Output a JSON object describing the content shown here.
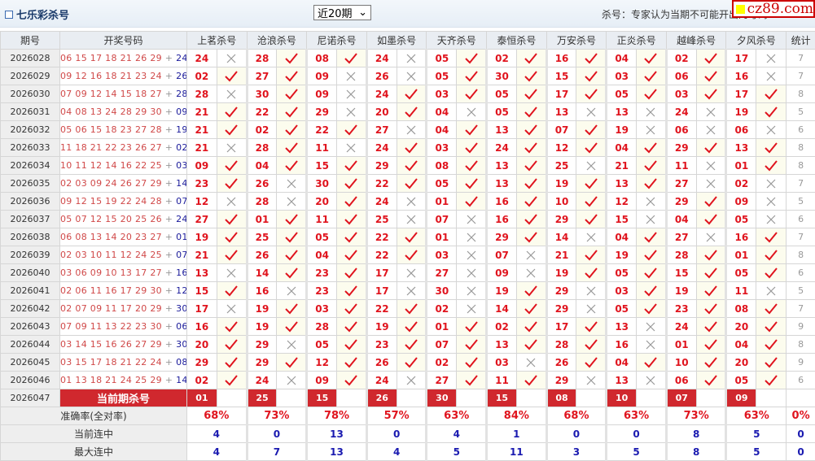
{
  "header": {
    "title": "七乐彩杀号",
    "period_select": "近20期",
    "note": "杀号：专家认为当期不可能开出的号码",
    "watermark": "cz89.com"
  },
  "columns": {
    "period": "期号",
    "draw": "开奖号码",
    "experts": [
      "上茗杀号",
      "沧浪杀号",
      "尼诺杀号",
      "如墨杀号",
      "天齐杀号",
      "泰恒杀号",
      "万安杀号",
      "正炎杀号",
      "越峰杀号",
      "夕风杀号"
    ],
    "stat": "统计"
  },
  "colors": {
    "red": "#e0141e",
    "blue": "#1a1ab0",
    "check": "#e0141e",
    "cross": "#999999"
  },
  "rows": [
    {
      "period": "2026028",
      "nums": "06 15 17 18 21 26 29",
      "special": "24",
      "kills": [
        "24",
        "28",
        "08",
        "24",
        "05",
        "02",
        "16",
        "04",
        "02",
        "17"
      ],
      "hits": [
        0,
        1,
        1,
        0,
        1,
        1,
        1,
        1,
        1,
        0
      ],
      "stat": "7"
    },
    {
      "period": "2026029",
      "nums": "09 12 16 18 21 23 24",
      "special": "26",
      "kills": [
        "02",
        "27",
        "09",
        "26",
        "05",
        "30",
        "15",
        "03",
        "06",
        "16"
      ],
      "hits": [
        1,
        1,
        0,
        0,
        1,
        1,
        1,
        1,
        1,
        0
      ],
      "stat": "7"
    },
    {
      "period": "2026030",
      "nums": "07 09 12 14 15 18 27",
      "special": "28",
      "kills": [
        "28",
        "30",
        "09",
        "24",
        "03",
        "05",
        "17",
        "05",
        "03",
        "17"
      ],
      "hits": [
        0,
        1,
        0,
        1,
        1,
        1,
        1,
        1,
        1,
        1
      ],
      "stat": "8"
    },
    {
      "period": "2026031",
      "nums": "04 08 13 24 28 29 30",
      "special": "09",
      "kills": [
        "21",
        "22",
        "29",
        "20",
        "04",
        "05",
        "13",
        "13",
        "24",
        "19"
      ],
      "hits": [
        1,
        1,
        0,
        1,
        0,
        1,
        0,
        0,
        0,
        1
      ],
      "stat": "5"
    },
    {
      "period": "2026032",
      "nums": "05 06 15 18 23 27 28",
      "special": "19",
      "kills": [
        "21",
        "02",
        "22",
        "27",
        "04",
        "13",
        "07",
        "19",
        "06",
        "06"
      ],
      "hits": [
        1,
        1,
        1,
        0,
        1,
        1,
        1,
        0,
        0,
        0
      ],
      "stat": "6"
    },
    {
      "period": "2026033",
      "nums": "11 18 21 22 23 26 27",
      "special": "02",
      "kills": [
        "21",
        "28",
        "11",
        "24",
        "03",
        "24",
        "12",
        "04",
        "29",
        "13"
      ],
      "hits": [
        0,
        1,
        0,
        1,
        1,
        1,
        1,
        1,
        1,
        1
      ],
      "stat": "8"
    },
    {
      "period": "2026034",
      "nums": "10 11 12 14 16 22 25",
      "special": "03",
      "kills": [
        "09",
        "04",
        "15",
        "29",
        "08",
        "13",
        "25",
        "21",
        "11",
        "01"
      ],
      "hits": [
        1,
        1,
        1,
        1,
        1,
        1,
        0,
        1,
        0,
        1
      ],
      "stat": "8"
    },
    {
      "period": "2026035",
      "nums": "02 03 09 24 26 27 29",
      "special": "14",
      "kills": [
        "23",
        "26",
        "30",
        "22",
        "05",
        "13",
        "19",
        "13",
        "27",
        "02"
      ],
      "hits": [
        1,
        0,
        1,
        1,
        1,
        1,
        1,
        1,
        0,
        0
      ],
      "stat": "7"
    },
    {
      "period": "2026036",
      "nums": "09 12 15 19 22 24 28",
      "special": "07",
      "kills": [
        "12",
        "28",
        "20",
        "24",
        "01",
        "16",
        "10",
        "12",
        "29",
        "09"
      ],
      "hits": [
        0,
        0,
        1,
        0,
        1,
        1,
        1,
        0,
        1,
        0
      ],
      "stat": "5"
    },
    {
      "period": "2026037",
      "nums": "05 07 12 15 20 25 26",
      "special": "24",
      "kills": [
        "27",
        "01",
        "11",
        "25",
        "07",
        "16",
        "29",
        "15",
        "04",
        "05"
      ],
      "hits": [
        1,
        1,
        1,
        0,
        0,
        1,
        1,
        0,
        1,
        0
      ],
      "stat": "6"
    },
    {
      "period": "2026038",
      "nums": "06 08 13 14 20 23 27",
      "special": "01",
      "kills": [
        "19",
        "25",
        "05",
        "22",
        "01",
        "29",
        "14",
        "04",
        "27",
        "16"
      ],
      "hits": [
        1,
        1,
        1,
        1,
        0,
        1,
        0,
        1,
        0,
        1
      ],
      "stat": "7"
    },
    {
      "period": "2026039",
      "nums": "02 03 10 11 12 24 25",
      "special": "07",
      "kills": [
        "21",
        "26",
        "04",
        "22",
        "03",
        "07",
        "21",
        "19",
        "28",
        "01"
      ],
      "hits": [
        1,
        1,
        1,
        1,
        0,
        0,
        1,
        1,
        1,
        1
      ],
      "stat": "8"
    },
    {
      "period": "2026040",
      "nums": "03 06 09 10 13 17 27",
      "special": "16",
      "kills": [
        "13",
        "14",
        "23",
        "17",
        "27",
        "09",
        "19",
        "05",
        "15",
        "05"
      ],
      "hits": [
        0,
        1,
        1,
        0,
        0,
        0,
        1,
        1,
        1,
        1
      ],
      "stat": "6"
    },
    {
      "period": "2026041",
      "nums": "02 06 11 16 17 29 30",
      "special": "12",
      "kills": [
        "15",
        "16",
        "23",
        "17",
        "30",
        "19",
        "29",
        "03",
        "19",
        "11"
      ],
      "hits": [
        1,
        0,
        1,
        0,
        0,
        1,
        0,
        1,
        1,
        0
      ],
      "stat": "5"
    },
    {
      "period": "2026042",
      "nums": "02 07 09 11 17 20 29",
      "special": "30",
      "kills": [
        "17",
        "19",
        "03",
        "22",
        "02",
        "14",
        "29",
        "05",
        "23",
        "08"
      ],
      "hits": [
        0,
        1,
        1,
        1,
        0,
        1,
        0,
        1,
        1,
        1
      ],
      "stat": "7"
    },
    {
      "period": "2026043",
      "nums": "07 09 11 13 22 23 30",
      "special": "06",
      "kills": [
        "16",
        "19",
        "28",
        "19",
        "01",
        "02",
        "17",
        "13",
        "24",
        "20"
      ],
      "hits": [
        1,
        1,
        1,
        1,
        1,
        1,
        1,
        0,
        1,
        1
      ],
      "stat": "9"
    },
    {
      "period": "2026044",
      "nums": "03 14 15 16 26 27 29",
      "special": "30",
      "kills": [
        "20",
        "29",
        "05",
        "23",
        "07",
        "13",
        "28",
        "16",
        "01",
        "04"
      ],
      "hits": [
        1,
        0,
        1,
        1,
        1,
        1,
        1,
        0,
        1,
        1
      ],
      "stat": "8"
    },
    {
      "period": "2026045",
      "nums": "03 15 17 18 21 22 24",
      "special": "08",
      "kills": [
        "29",
        "29",
        "12",
        "26",
        "02",
        "03",
        "26",
        "04",
        "10",
        "20"
      ],
      "hits": [
        1,
        1,
        1,
        1,
        1,
        0,
        1,
        1,
        1,
        1
      ],
      "stat": "9"
    },
    {
      "period": "2026046",
      "nums": "01 13 18 21 24 25 29",
      "special": "14",
      "kills": [
        "02",
        "24",
        "09",
        "24",
        "27",
        "11",
        "29",
        "13",
        "06",
        "05"
      ],
      "hits": [
        1,
        0,
        1,
        0,
        1,
        1,
        0,
        0,
        1,
        1
      ],
      "stat": "6"
    }
  ],
  "current": {
    "period": "2026047",
    "label": "当前期杀号",
    "kills": [
      "01",
      "25",
      "15",
      "26",
      "30",
      "15",
      "08",
      "10",
      "07",
      "09"
    ]
  },
  "stats": {
    "accuracy": {
      "label": "准确率(全对率)",
      "values": [
        "68%",
        "73%",
        "78%",
        "57%",
        "63%",
        "84%",
        "68%",
        "63%",
        "73%",
        "63%"
      ],
      "stat": "0%"
    },
    "current_streak": {
      "label": "当前连中",
      "values": [
        "4",
        "0",
        "13",
        "0",
        "4",
        "1",
        "0",
        "0",
        "8",
        "5"
      ],
      "stat": "0"
    },
    "max_streak": {
      "label": "最大连中",
      "values": [
        "4",
        "7",
        "13",
        "4",
        "5",
        "11",
        "3",
        "5",
        "8",
        "5"
      ],
      "stat": "0"
    }
  }
}
